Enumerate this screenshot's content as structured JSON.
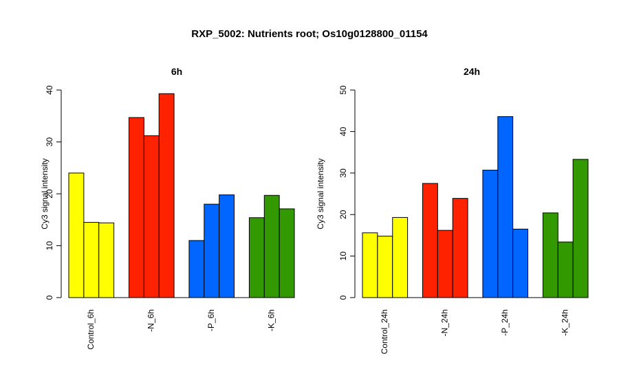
{
  "title": "RXP_5002: Nutrients root; Os10g0128800_01154",
  "colors": {
    "control": "#ffff00",
    "minus_n": "#ff2200",
    "minus_p": "#0066ff",
    "minus_k": "#339900"
  },
  "chart_data": [
    {
      "type": "bar",
      "title": "6h",
      "ylabel": "Cy3 signal intensity",
      "ylim": [
        0,
        40
      ],
      "yticks": [
        0,
        10,
        20,
        30,
        40
      ],
      "groups": [
        {
          "label": "Control_6h",
          "color_key": "control",
          "values": [
            24.0,
            14.5,
            14.4
          ]
        },
        {
          "label": "-N_6h",
          "color_key": "minus_n",
          "values": [
            34.7,
            31.2,
            39.3
          ]
        },
        {
          "label": "-P_6h",
          "color_key": "minus_p",
          "values": [
            11.0,
            18.0,
            19.8
          ]
        },
        {
          "label": "-K_6h",
          "color_key": "minus_k",
          "values": [
            15.4,
            19.7,
            17.1
          ]
        }
      ]
    },
    {
      "type": "bar",
      "title": "24h",
      "ylabel": "Cy3 signal intensity",
      "ylim": [
        0,
        50
      ],
      "yticks": [
        0,
        10,
        20,
        30,
        40,
        50
      ],
      "groups": [
        {
          "label": "Control_24h",
          "color_key": "control",
          "values": [
            15.6,
            14.8,
            19.3
          ]
        },
        {
          "label": "-N_24h",
          "color_key": "minus_n",
          "values": [
            27.5,
            16.2,
            23.9
          ]
        },
        {
          "label": "-P_24h",
          "color_key": "minus_p",
          "values": [
            30.7,
            43.6,
            16.5
          ]
        },
        {
          "label": "-K_24h",
          "color_key": "minus_k",
          "values": [
            20.4,
            13.4,
            33.3
          ]
        }
      ]
    }
  ]
}
